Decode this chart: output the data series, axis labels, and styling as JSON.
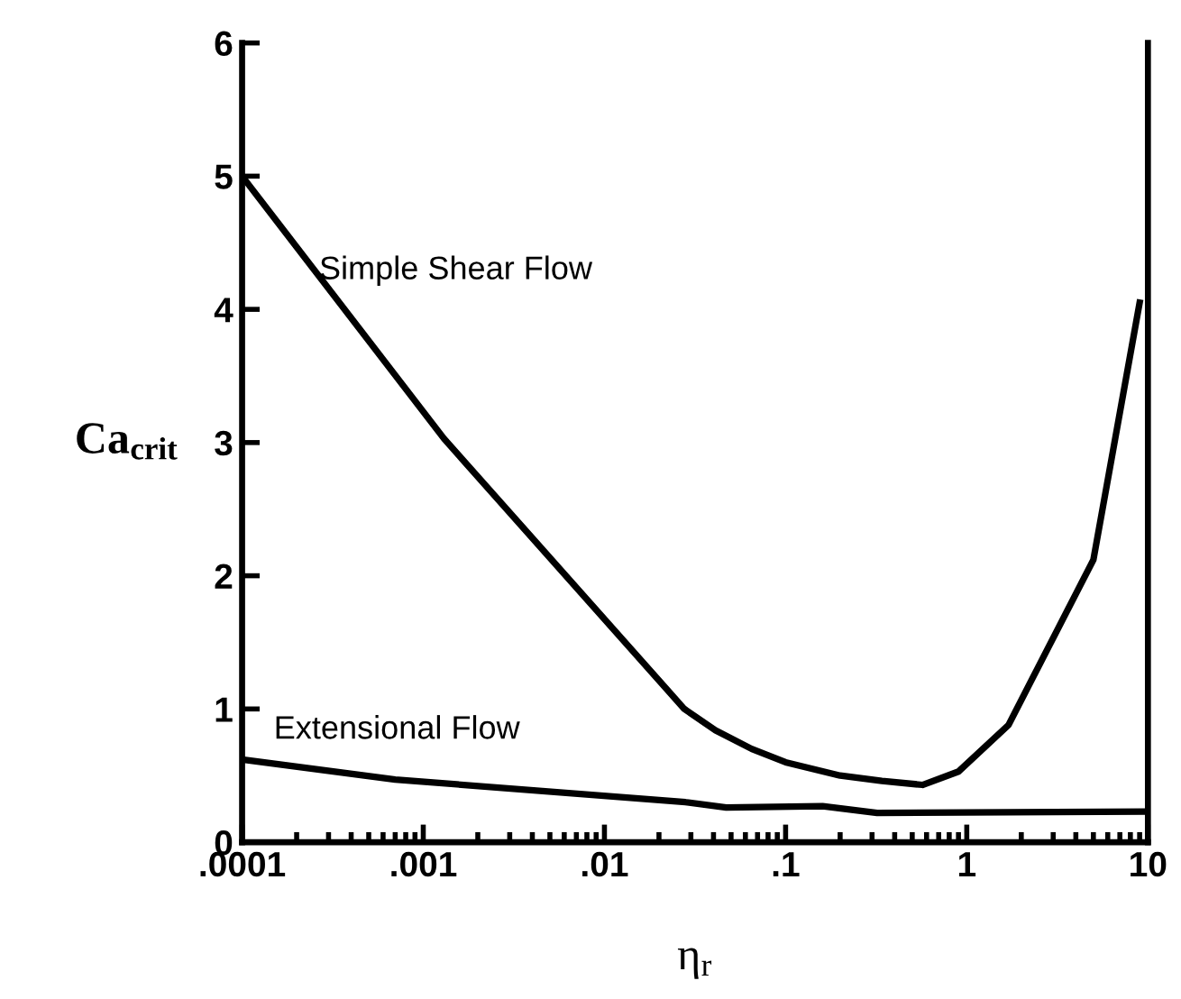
{
  "chart_data": {
    "type": "line",
    "xlabel": "η$_{r}$",
    "ylabel": "Ca$_{crit}$",
    "log": "x",
    "xlim": [
      0.0001,
      10
    ],
    "ylim": [
      0,
      6
    ],
    "xticks": [
      {
        "value": 0.0001,
        "label": ".0001"
      },
      {
        "value": 0.001,
        "label": ".001"
      },
      {
        "value": 0.01,
        "label": ".01"
      },
      {
        "value": 0.1,
        "label": ".1"
      },
      {
        "value": 1,
        "label": "1"
      },
      {
        "value": 10,
        "label": "10"
      }
    ],
    "yticks": [
      0,
      1,
      2,
      3,
      4,
      5,
      6
    ],
    "grid": false,
    "legend": false,
    "marker": "none",
    "line_style": "solid",
    "series": [
      {
        "color": "#000000",
        "x": [
          0.0001,
          0.0013,
          0.0276,
          0.041,
          0.065,
          0.1,
          0.2,
          0.34,
          0.57,
          0.9,
          1.7,
          5.0,
          9.0
        ],
        "values": [
          5.0,
          3.03,
          1.0,
          0.84,
          0.7,
          0.6,
          0.5,
          0.46,
          0.43,
          0.53,
          0.88,
          2.12,
          4.05
        ]
      },
      {
        "color": "#000000",
        "x": [
          0.0001,
          0.0007,
          0.028,
          0.047,
          0.16,
          0.32,
          10
        ],
        "values": [
          0.62,
          0.47,
          0.3,
          0.26,
          0.27,
          0.22,
          0.23
        ]
      }
    ],
    "annotations": [
      "Simple Shear Flow",
      "Extensional Flow"
    ]
  }
}
